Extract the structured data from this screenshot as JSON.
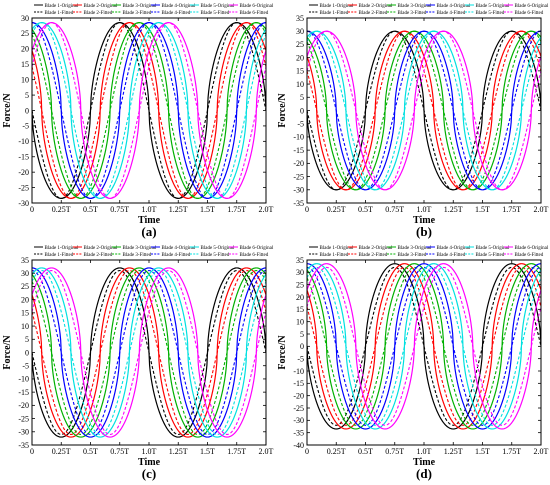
{
  "chart_data": [
    {
      "panel_label": "(a)",
      "type": "line",
      "xlabel": "Time",
      "ylabel": "Force/N",
      "xlim": [
        0,
        2.0
      ],
      "ylim": [
        -30,
        30
      ],
      "y_step": 5,
      "x_tick_labels": [
        "0",
        "0.25T",
        "0.5T",
        "0.75T",
        "1.0T",
        "1.25T",
        "1.5T",
        "1.75T",
        "2.0T"
      ],
      "y_tick_labels": [
        "-30",
        "-25",
        "-20",
        "-15",
        "-10",
        "-5",
        "0",
        "5",
        "10",
        "15",
        "20",
        "25",
        "30"
      ],
      "legend_placement": "top",
      "amplitude": 28.5,
      "fitted_amplitude": 28.5,
      "phases": [
        0.5,
        0.417,
        0.333,
        0.25,
        0.167,
        0.083
      ],
      "series": [
        {
          "name": "Blade 1-Original",
          "color": "#000000",
          "style": "solid"
        },
        {
          "name": "Blade 2-Original",
          "color": "#ff0000",
          "style": "solid"
        },
        {
          "name": "Blade 3-Original",
          "color": "#00b000",
          "style": "solid"
        },
        {
          "name": "Blade 4-Original",
          "color": "#0000ff",
          "style": "solid"
        },
        {
          "name": "Blade 5-Original",
          "color": "#00e0e0",
          "style": "solid"
        },
        {
          "name": "Blade 6-Original",
          "color": "#ff00ff",
          "style": "solid"
        },
        {
          "name": "Blade 1-Fitted",
          "color": "#000000",
          "style": "dashed"
        },
        {
          "name": "Blade 2-Fitted",
          "color": "#ff0000",
          "style": "dashed"
        },
        {
          "name": "Blade 3-Fitted",
          "color": "#00b000",
          "style": "dashed"
        },
        {
          "name": "Blade 4-Fitted",
          "color": "#0000ff",
          "style": "dashed"
        },
        {
          "name": "Blade 5-Fitted",
          "color": "#00e0e0",
          "style": "dashed"
        },
        {
          "name": "Blade 6-Fitted",
          "color": "#ff00ff",
          "style": "dashed"
        }
      ]
    },
    {
      "panel_label": "(b)",
      "type": "line",
      "xlabel": "Time",
      "ylabel": "Force/N",
      "xlim": [
        0,
        2.0
      ],
      "ylim": [
        -35,
        35
      ],
      "y_step": 5,
      "x_tick_labels": [
        "0",
        "0.25T",
        "0.5T",
        "0.75T",
        "1.0T",
        "1.25T",
        "1.5T",
        "1.75T",
        "2.0T"
      ],
      "y_tick_labels": [
        "-35",
        "-30",
        "-25",
        "-20",
        "-15",
        "-10",
        "-5",
        "0",
        "5",
        "10",
        "15",
        "20",
        "25",
        "30",
        "35"
      ],
      "legend_placement": "top",
      "amplitude": 30,
      "fitted_amplitude": 30,
      "phases": [
        0.5,
        0.417,
        0.333,
        0.25,
        0.167,
        0.083
      ],
      "series": [
        {
          "name": "Blade 1-Original",
          "color": "#000000",
          "style": "solid"
        },
        {
          "name": "Blade 2-Original",
          "color": "#ff0000",
          "style": "solid"
        },
        {
          "name": "Blade 3-Original",
          "color": "#00b000",
          "style": "solid"
        },
        {
          "name": "Blade 4-Original",
          "color": "#0000ff",
          "style": "solid"
        },
        {
          "name": "Blade 5-Original",
          "color": "#00e0e0",
          "style": "solid"
        },
        {
          "name": "Blade 6-Original",
          "color": "#ff00ff",
          "style": "solid"
        },
        {
          "name": "Blade 1-Fitted",
          "color": "#000000",
          "style": "dashed"
        },
        {
          "name": "Blade 2-Fitted",
          "color": "#ff0000",
          "style": "dashed"
        },
        {
          "name": "Blade 3-Fitted",
          "color": "#00b000",
          "style": "dashed"
        },
        {
          "name": "Blade 4-Fitted",
          "color": "#0000ff",
          "style": "dashed"
        },
        {
          "name": "Blade 5-Fitted",
          "color": "#00e0e0",
          "style": "dashed"
        },
        {
          "name": "Blade 6-Fitted",
          "color": "#ff00ff",
          "style": "dashed"
        }
      ]
    },
    {
      "panel_label": "(c)",
      "type": "line",
      "xlabel": "Time",
      "ylabel": "Force/N",
      "xlim": [
        0,
        2.0
      ],
      "ylim": [
        -35,
        35
      ],
      "y_step": 5,
      "x_tick_labels": [
        "0",
        "0.25T",
        "0.5T",
        "0.75T",
        "1.0T",
        "1.25T",
        "1.5T",
        "1.75T",
        "2.0T"
      ],
      "y_tick_labels": [
        "-35",
        "-30",
        "-25",
        "-20",
        "-15",
        "-10",
        "-5",
        "0",
        "5",
        "10",
        "15",
        "20",
        "25",
        "30",
        "35"
      ],
      "legend_placement": "top",
      "amplitude": 32,
      "fitted_amplitude": 31,
      "phases": [
        0.5,
        0.417,
        0.333,
        0.25,
        0.167,
        0.083
      ],
      "series": [
        {
          "name": "Blade 1-Original",
          "color": "#000000",
          "style": "solid"
        },
        {
          "name": "Blade 2-Original",
          "color": "#ff0000",
          "style": "solid"
        },
        {
          "name": "Blade 3-Original",
          "color": "#00b000",
          "style": "solid"
        },
        {
          "name": "Blade 4-Original",
          "color": "#0000ff",
          "style": "solid"
        },
        {
          "name": "Blade 5-Original",
          "color": "#00e0e0",
          "style": "solid"
        },
        {
          "name": "Blade 6-Original",
          "color": "#ff00ff",
          "style": "solid"
        },
        {
          "name": "Blade 1-Fitted",
          "color": "#000000",
          "style": "dashed"
        },
        {
          "name": "Blade 2-Fitted",
          "color": "#ff0000",
          "style": "dashed"
        },
        {
          "name": "Blade 3-Fitted",
          "color": "#00b000",
          "style": "dashed"
        },
        {
          "name": "Blade 4-Fitted",
          "color": "#0000ff",
          "style": "dashed"
        },
        {
          "name": "Blade 5-Fitted",
          "color": "#00e0e0",
          "style": "dashed"
        },
        {
          "name": "Blade 6-Fitted",
          "color": "#ff00ff",
          "style": "dashed"
        }
      ]
    },
    {
      "panel_label": "(d)",
      "type": "line",
      "xlabel": "Time",
      "ylabel": "Force/N",
      "xlim": [
        0,
        2.0
      ],
      "ylim": [
        -40,
        35
      ],
      "y_step": 5,
      "x_tick_labels": [
        "0",
        "0.25T",
        "0.5T",
        "0.75T",
        "1.0T",
        "1.25T",
        "1.5T",
        "1.75T",
        "2.0T"
      ],
      "y_tick_labels": [
        "-40",
        "-35",
        "-30",
        "-25",
        "-20",
        "-15",
        "-10",
        "-5",
        "0",
        "5",
        "10",
        "15",
        "20",
        "25",
        "30",
        "35"
      ],
      "legend_placement": "top",
      "amplitude": 33.5,
      "fitted_amplitude": 32,
      "phases": [
        0.5,
        0.417,
        0.333,
        0.25,
        0.167,
        0.083
      ],
      "series": [
        {
          "name": "Blade 1-Original",
          "color": "#000000",
          "style": "solid"
        },
        {
          "name": "Blade 2-Original",
          "color": "#ff0000",
          "style": "solid"
        },
        {
          "name": "Blade 3-Original",
          "color": "#00b000",
          "style": "solid"
        },
        {
          "name": "Blade 4-Original",
          "color": "#0000ff",
          "style": "solid"
        },
        {
          "name": "Blade 5-Original",
          "color": "#00e0e0",
          "style": "solid"
        },
        {
          "name": "Blade 6-Original",
          "color": "#ff00ff",
          "style": "solid"
        },
        {
          "name": "Blade 1-Fitted",
          "color": "#000000",
          "style": "dashed"
        },
        {
          "name": "Blade 2-Fitted",
          "color": "#ff0000",
          "style": "dashed"
        },
        {
          "name": "Blade 3-Fitted",
          "color": "#00b000",
          "style": "dashed"
        },
        {
          "name": "Blade 4-Fitted",
          "color": "#0000ff",
          "style": "dashed"
        },
        {
          "name": "Blade 5-Fitted",
          "color": "#00e0e0",
          "style": "dashed"
        },
        {
          "name": "Blade 6-Fitted",
          "color": "#ff00ff",
          "style": "dashed"
        }
      ]
    }
  ]
}
